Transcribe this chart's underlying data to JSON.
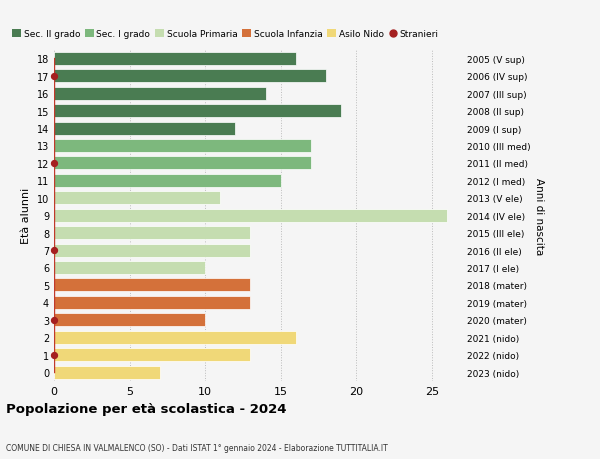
{
  "ages": [
    18,
    17,
    16,
    15,
    14,
    13,
    12,
    11,
    10,
    9,
    8,
    7,
    6,
    5,
    4,
    3,
    2,
    1,
    0
  ],
  "bar_values": [
    16,
    18,
    14,
    19,
    12,
    17,
    17,
    15,
    11,
    26,
    13,
    13,
    10,
    13,
    13,
    10,
    16,
    13,
    7
  ],
  "right_labels": [
    "2005 (V sup)",
    "2006 (IV sup)",
    "2007 (III sup)",
    "2008 (II sup)",
    "2009 (I sup)",
    "2010 (III med)",
    "2011 (II med)",
    "2012 (I med)",
    "2013 (V ele)",
    "2014 (IV ele)",
    "2015 (III ele)",
    "2016 (II ele)",
    "2017 (I ele)",
    "2018 (mater)",
    "2019 (mater)",
    "2020 (mater)",
    "2021 (nido)",
    "2022 (nido)",
    "2023 (nido)"
  ],
  "bar_colors": [
    "#4a7c52",
    "#4a7c52",
    "#4a7c52",
    "#4a7c52",
    "#4a7c52",
    "#7db87d",
    "#7db87d",
    "#7db87d",
    "#c5ddb0",
    "#c5ddb0",
    "#c5ddb0",
    "#c5ddb0",
    "#c5ddb0",
    "#d4713a",
    "#d4713a",
    "#d4713a",
    "#f0d878",
    "#f0d878",
    "#f0d878"
  ],
  "legend_labels": [
    "Sec. II grado",
    "Sec. I grado",
    "Scuola Primaria",
    "Scuola Infanzia",
    "Asilo Nido",
    "Stranieri"
  ],
  "legend_colors": [
    "#4a7c52",
    "#7db87d",
    "#c5ddb0",
    "#d4713a",
    "#f0d878",
    "#a52020"
  ],
  "stranieri_ages": [
    17,
    12,
    7,
    3,
    1
  ],
  "ylabel": "Età alunni",
  "right_ylabel": "Anni di nascita",
  "title": "Popolazione per età scolastica - 2024",
  "subtitle": "COMUNE DI CHIESA IN VALMALENCO (SO) - Dati ISTAT 1° gennaio 2024 - Elaborazione TUTTITALIA.IT",
  "xlim": [
    0,
    27
  ],
  "xticks": [
    0,
    5,
    10,
    15,
    20,
    25
  ],
  "background_color": "#f5f5f5",
  "bar_height": 0.75,
  "stranieri_dot_color": "#a52020",
  "stranieri_line_color": "#c0392b"
}
